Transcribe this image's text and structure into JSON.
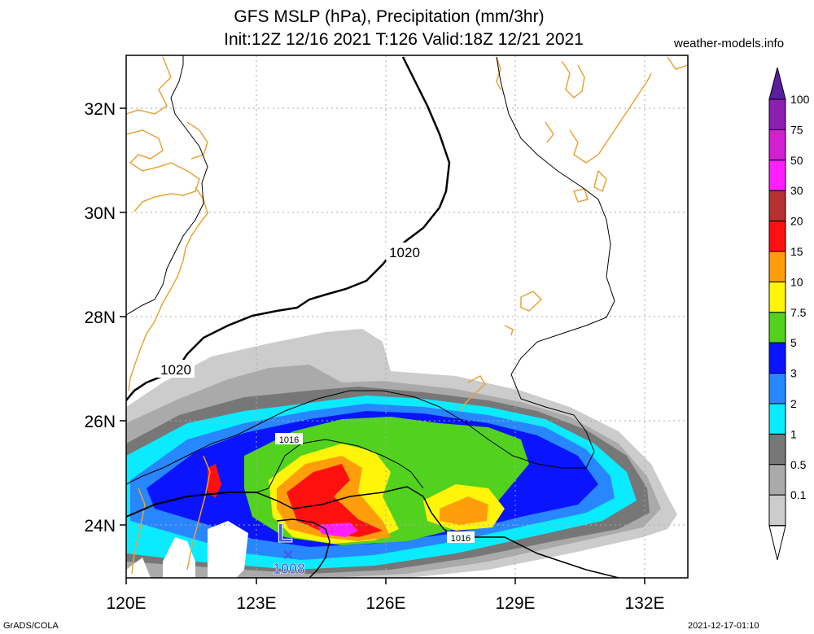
{
  "header": {
    "title_line1": "GFS MSLP (hPa), Precipitation (mm/3hr)",
    "title_line2": "Init:12Z 12/16 2021 T:126 Valid:18Z 12/21 2021",
    "site": "weather-models.info"
  },
  "footer": {
    "left": "GrADS/COLA",
    "right": "2021-12-17-01:10"
  },
  "map": {
    "lat_labels": [
      "32N",
      "30N",
      "28N",
      "26N",
      "24N"
    ],
    "lon_labels": [
      "120E",
      "123E",
      "126E",
      "129E",
      "132E"
    ],
    "coastline_color": "#e8a33a",
    "isobars": [
      {
        "label": "1020"
      },
      {
        "label": "1020"
      },
      {
        "label": "1016"
      },
      {
        "label": "1016"
      }
    ],
    "low": {
      "symbol": "L",
      "marker": "×",
      "pressure": "1008",
      "color": "#3c5fe0"
    }
  },
  "colorbar": {
    "labels": [
      "100",
      "75",
      "50",
      "30",
      "20",
      "15",
      "10",
      "7.5",
      "5",
      "3",
      "2",
      "1",
      "0.5",
      "0.1"
    ],
    "colors": [
      "#8c1fb0",
      "#d21fd2",
      "#ff1fff",
      "#b43232",
      "#ff1010",
      "#ff9e0a",
      "#fff50a",
      "#52d21e",
      "#0a14ff",
      "#2886ff",
      "#0aebff",
      "#777777",
      "#aaaaaa",
      "#cccccc"
    ],
    "top_arrow_color": "#5a1ea0"
  }
}
